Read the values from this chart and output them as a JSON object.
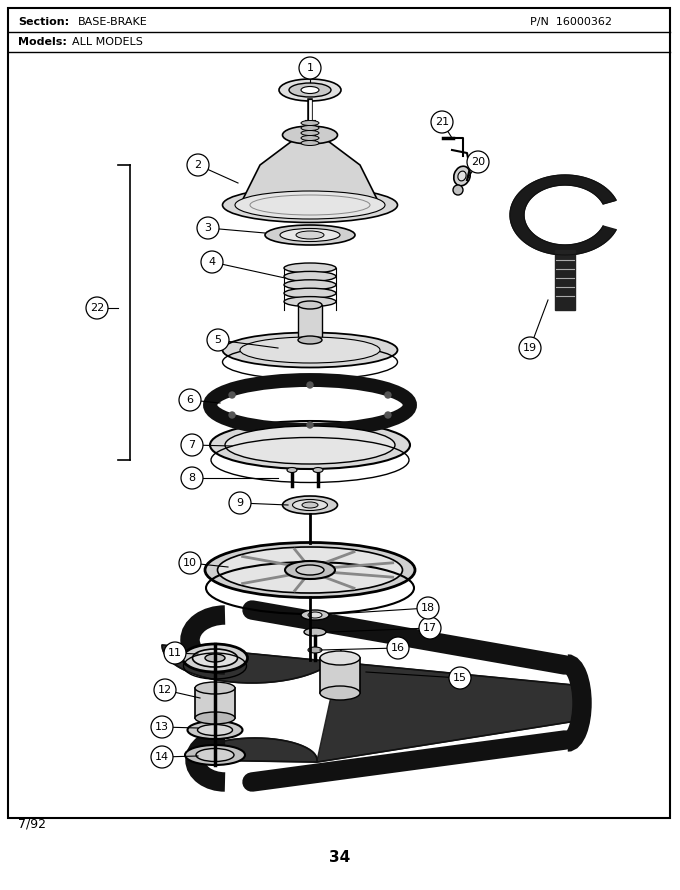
{
  "title_section": "Section:  BASE-BRAKE",
  "title_pn": "P/N  16000362",
  "title_models": "Models:  ALL MODELS",
  "date": "7/92",
  "page": "34",
  "bg_color": "#ffffff",
  "border_color": "#000000",
  "text_color": "#000000",
  "fig_width": 6.8,
  "fig_height": 8.9,
  "dpi": 100
}
